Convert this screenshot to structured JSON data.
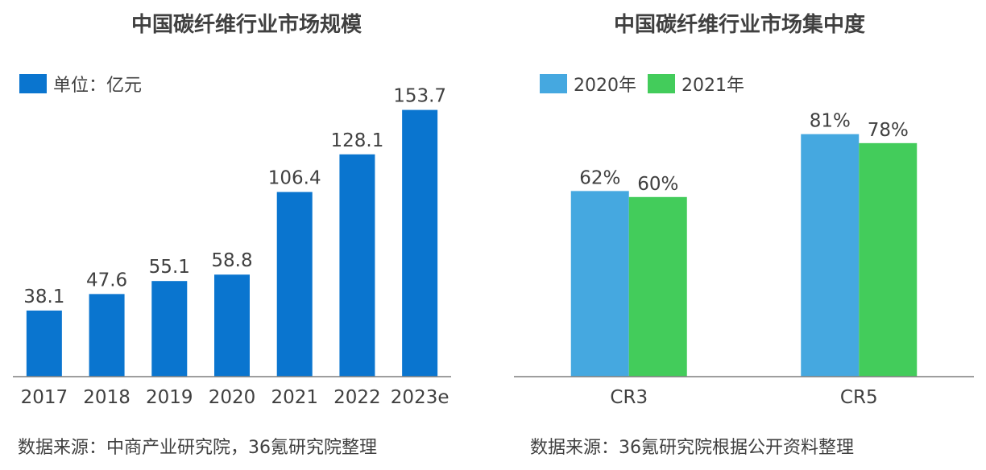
{
  "chart_data": [
    {
      "type": "bar",
      "title": "中国碳纤维行业市场规模",
      "legend": "单位：亿元",
      "legend_placement": "top-left",
      "categories": [
        "2017",
        "2018",
        "2019",
        "2020",
        "2021",
        "2022",
        "2023e"
      ],
      "series": [
        {
          "name": "单位：亿元",
          "color": "#0A75CF",
          "values": [
            38.1,
            47.6,
            55.1,
            58.8,
            106.4,
            128.1,
            153.7
          ],
          "labels": [
            "38.1",
            "47.6",
            "55.1",
            "58.8",
            "106.4",
            "128.1",
            "153.7"
          ]
        }
      ],
      "ylim": [
        0,
        160
      ],
      "grid": false,
      "source": "数据来源：中商产业研究院，36氪研究院整理"
    },
    {
      "type": "bar",
      "title": "中国碳纤维行业市场集中度",
      "legend_placement": "top-left",
      "categories": [
        "CR3",
        "CR5"
      ],
      "series": [
        {
          "name": "2020年",
          "color": "#45A8E0",
          "values": [
            62,
            81
          ],
          "labels": [
            "62%",
            "81%"
          ]
        },
        {
          "name": "2021年",
          "color": "#43CC5B",
          "values": [
            60,
            78
          ],
          "labels": [
            "60%",
            "78%"
          ]
        }
      ],
      "ylim": [
        0,
        100
      ],
      "grid": false,
      "source": "数据来源：36氪研究院根据公开资料整理"
    }
  ]
}
